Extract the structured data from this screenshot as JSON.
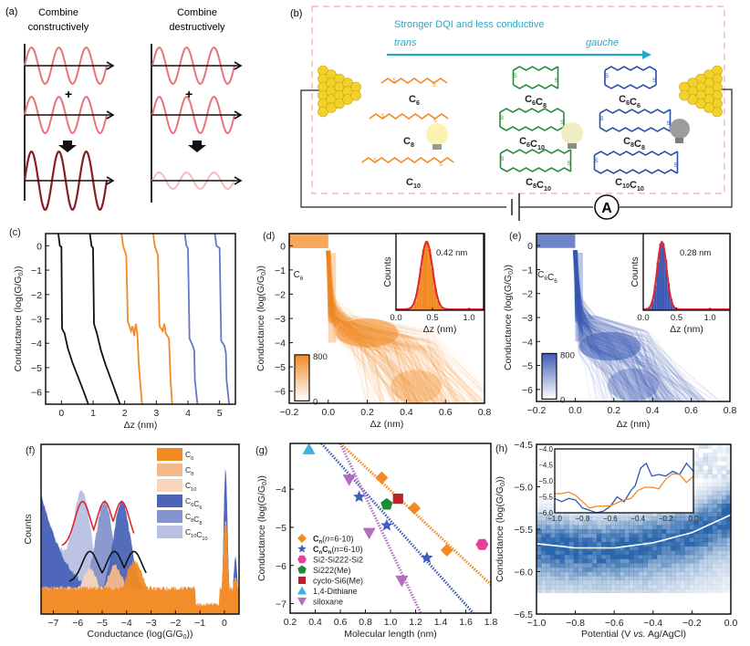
{
  "panels": {
    "a": {
      "label": "(a)",
      "left_title": [
        "Combine",
        "constructively"
      ],
      "right_title": [
        "Combine",
        "destructively"
      ],
      "plus": "+",
      "colors": {
        "wave": "#e8747a",
        "sum_constructive": "#8b1a22",
        "sum_destructive": "#f3bcc0"
      }
    },
    "b": {
      "label": "(b)",
      "arrow_title": "Stronger DQI and less conductive",
      "arrow_left": "trans",
      "arrow_right": "gauche",
      "arrow_color": "#27a9c6",
      "ammeter": "A",
      "molecules": {
        "linear": [
          "C6",
          "C8",
          "C10"
        ],
        "cyclic_mixed": [
          "C6C8",
          "C6C10",
          "C8C10"
        ],
        "cyclic_gauche": [
          "C6C6",
          "C8C8",
          "C10C10"
        ]
      },
      "colors": {
        "linear": "#f28a24",
        "mixed": "#2a8a3c",
        "gauche": "#2b4fad",
        "frame": "#f4b8bd",
        "gold": "#f2d22a"
      }
    }
  },
  "chart_data": [
    {
      "id": "c",
      "type": "line",
      "label": "(c)",
      "xlabel": "Δz (nm)",
      "ylabel": "Conductance (log(G/G0))",
      "xlim": [
        -0.5,
        5.5
      ],
      "ylim": [
        -6.5,
        0.5
      ],
      "xticks": [
        "0",
        "1",
        "2",
        "3",
        "4",
        "5"
      ],
      "yticks": [
        "0",
        "-1",
        "-2",
        "-3",
        "-4",
        "-5",
        "-6"
      ],
      "series": [
        {
          "name": "trace-1",
          "color": "#111111",
          "points": [
            [
              -0.1,
              0.5
            ],
            [
              -0.05,
              0.0
            ],
            [
              0.0,
              -0.05
            ],
            [
              0.02,
              -3.4
            ],
            [
              0.1,
              -3.6
            ],
            [
              0.2,
              -4.2
            ],
            [
              0.35,
              -4.8
            ],
            [
              0.5,
              -5.3
            ],
            [
              0.65,
              -5.8
            ],
            [
              0.85,
              -6.5
            ]
          ]
        },
        {
          "name": "trace-2",
          "color": "#111111",
          "points": [
            [
              0.9,
              0.5
            ],
            [
              0.95,
              0.0
            ],
            [
              1.0,
              -0.1
            ],
            [
              1.03,
              -3.2
            ],
            [
              1.12,
              -3.6
            ],
            [
              1.25,
              -4.3
            ],
            [
              1.4,
              -4.9
            ],
            [
              1.6,
              -5.6
            ],
            [
              1.85,
              -6.5
            ]
          ]
        },
        {
          "name": "trace-3",
          "color": "#f28a24",
          "points": [
            [
              1.9,
              0.5
            ],
            [
              1.95,
              0.0
            ],
            [
              2.05,
              -0.4
            ],
            [
              2.1,
              -3.1
            ],
            [
              2.2,
              -3.5
            ],
            [
              2.25,
              -3.3
            ],
            [
              2.3,
              -3.7
            ],
            [
              2.35,
              -3.2
            ],
            [
              2.4,
              -3.6
            ],
            [
              2.45,
              -5.0
            ],
            [
              2.55,
              -6.5
            ]
          ]
        },
        {
          "name": "trace-4",
          "color": "#f28a24",
          "points": [
            [
              2.9,
              0.5
            ],
            [
              2.95,
              0.0
            ],
            [
              3.05,
              -0.4
            ],
            [
              3.1,
              -3.3
            ],
            [
              3.2,
              -3.5
            ],
            [
              3.25,
              -3.2
            ],
            [
              3.3,
              -3.6
            ],
            [
              3.4,
              -3.8
            ],
            [
              3.45,
              -5.5
            ],
            [
              3.5,
              -6.5
            ]
          ]
        },
        {
          "name": "trace-5",
          "color": "#6678c4",
          "points": [
            [
              3.9,
              0.5
            ],
            [
              3.95,
              0.0
            ],
            [
              4.0,
              -0.1
            ],
            [
              4.05,
              -3.8
            ],
            [
              4.15,
              -4.1
            ],
            [
              4.2,
              -4.3
            ],
            [
              4.22,
              -5.5
            ],
            [
              4.3,
              -6.5
            ]
          ]
        },
        {
          "name": "trace-6",
          "color": "#6678c4",
          "points": [
            [
              4.85,
              0.5
            ],
            [
              4.9,
              0.0
            ],
            [
              5.0,
              -0.1
            ],
            [
              5.05,
              -3.9
            ],
            [
              5.15,
              -4.1
            ],
            [
              5.2,
              -4.4
            ],
            [
              5.22,
              -5.5
            ],
            [
              5.3,
              -6.5
            ]
          ]
        }
      ]
    },
    {
      "id": "d",
      "type": "heatmap",
      "label": "(d)",
      "molecule": "C6",
      "xlabel": "Δz (nm)",
      "ylabel": "Conductance (log(G/G0))",
      "xlim": [
        -0.2,
        0.8
      ],
      "ylim": [
        -6.5,
        0.5
      ],
      "xticks": [
        "-0.2",
        "0.0",
        "0.2",
        "0.4",
        "0.6",
        "0.8"
      ],
      "yticks": [
        "0",
        "-1",
        "-2",
        "-3",
        "-4",
        "-5",
        "-6"
      ],
      "color": "#f28a24",
      "colorbar": {
        "min": "0",
        "max": "800"
      },
      "inset": {
        "type": "bar",
        "xlabel": "Δz (nm)",
        "ylabel": "Counts",
        "xlim": [
          0.0,
          1.2
        ],
        "xticks": [
          "0.0",
          "0.5",
          "1.0"
        ],
        "peak": 0.42,
        "sigma": 0.08,
        "annotation": "0.42 nm",
        "fit_color": "#e0262c"
      }
    },
    {
      "id": "e",
      "type": "heatmap",
      "label": "(e)",
      "molecule": "C6C6",
      "xlabel": "Δz (nm)",
      "ylabel": "Conductance (log(G/G0))",
      "xlim": [
        -0.2,
        0.8
      ],
      "ylim": [
        -6.5,
        0.5
      ],
      "xticks": [
        "-0.2",
        "0.0",
        "0.2",
        "0.4",
        "0.6",
        "0.8"
      ],
      "yticks": [
        "0",
        "-1",
        "-2",
        "-3",
        "-4",
        "-5",
        "-6"
      ],
      "color": "#3d5bb5",
      "colorbar": {
        "min": "0",
        "max": "800"
      },
      "inset": {
        "type": "bar",
        "xlabel": "Δz (nm)",
        "ylabel": "Counts",
        "xlim": [
          0.0,
          1.3
        ],
        "xticks": [
          "0.0",
          "0.5",
          "1.0"
        ],
        "peak": 0.28,
        "sigma": 0.07,
        "annotation": "0.28 nm",
        "fit_color": "#e0262c"
      }
    },
    {
      "id": "f",
      "type": "area",
      "label": "(f)",
      "xlabel": "Conductance (log(G/G0))",
      "ylabel": "Counts",
      "xlim": [
        -7.5,
        0.6
      ],
      "xticks": [
        "-7",
        "-6",
        "-5",
        "-4",
        "-3",
        "-2",
        "-1",
        "0"
      ],
      "legend_position": "top-right",
      "series": [
        {
          "name": "C6",
          "color": "#f28a24",
          "peak": -3.7
        },
        {
          "name": "C8",
          "color": "#f4b98a",
          "peak": -4.5
        },
        {
          "name": "C10",
          "color": "#f8d5bb",
          "peak": -5.5
        },
        {
          "name": "C6C6",
          "color": "#4b64b8",
          "peak": -4.2
        },
        {
          "name": "C8C8",
          "color": "#8593cf",
          "peak": -4.9
        },
        {
          "name": "C10C10",
          "color": "#b8c0e3",
          "peak": -5.8
        }
      ]
    },
    {
      "id": "g",
      "type": "scatter",
      "label": "(g)",
      "xlabel": "Molecular length (nm)",
      "ylabel": "Conductance (log(G/G0))",
      "xlim": [
        0.2,
        1.8
      ],
      "ylim": [
        -7.25,
        -2.8
      ],
      "xticks": [
        "0.2",
        "0.4",
        "0.6",
        "0.8",
        "1.0",
        "1.2",
        "1.4",
        "1.6",
        "1.8"
      ],
      "yticks": [
        "-4",
        "-5",
        "-6",
        "-7"
      ],
      "legend_position": "bottom-left",
      "series": [
        {
          "name": "Cn(n=6-10)",
          "marker": "diamond",
          "color": "#f28a24",
          "points": [
            [
              0.93,
              -3.7
            ],
            [
              1.19,
              -4.5
            ],
            [
              1.45,
              -5.6
            ]
          ],
          "fit": [
            [
              0.6,
              -2.8
            ],
            [
              1.8,
              -6.5
            ]
          ]
        },
        {
          "name": "CnCn(n=6-10)",
          "marker": "star",
          "color": "#3f5fb8",
          "points": [
            [
              0.75,
              -4.2
            ],
            [
              0.97,
              -4.95
            ],
            [
              1.29,
              -5.8
            ]
          ],
          "fit": [
            [
              0.45,
              -2.8
            ],
            [
              1.66,
              -7.25
            ]
          ]
        },
        {
          "name": "Si2-Si222-Si2",
          "marker": "hexagon",
          "color": "#e8409a",
          "points": [
            [
              1.73,
              -5.45
            ]
          ]
        },
        {
          "name": "Si222(Me)",
          "marker": "pentagon",
          "color": "#1e8a3a",
          "points": [
            [
              0.97,
              -4.4
            ]
          ]
        },
        {
          "name": "cyclo-Si6(Me)",
          "marker": "square",
          "color": "#c0202a",
          "points": [
            [
              1.06,
              -4.25
            ]
          ]
        },
        {
          "name": "1,4-Dithiane",
          "marker": "triangle-up",
          "color": "#3fb0e2",
          "points": [
            [
              0.35,
              -2.95
            ]
          ]
        },
        {
          "name": "siloxane",
          "marker": "triangle-down",
          "color": "#b46ec0",
          "points": [
            [
              0.67,
              -3.75
            ],
            [
              0.83,
              -5.15
            ],
            [
              1.09,
              -6.4
            ]
          ],
          "fit": [
            [
              0.6,
              -2.8
            ],
            [
              1.24,
              -7.25
            ]
          ]
        }
      ]
    },
    {
      "id": "h",
      "type": "heatmap",
      "label": "(h)",
      "xlabel": "Potential (V vs. Ag/AgCl)",
      "ylabel": "Conductance (log(G/G0))",
      "xlim": [
        -1.0,
        0.0
      ],
      "ylim": [
        -6.5,
        -4.5
      ],
      "xticks": [
        "-1.0",
        "-0.8",
        "-0.6",
        "-0.4",
        "-0.2",
        "0.0"
      ],
      "yticks": [
        "-4.5",
        "-5.0",
        "-5.5",
        "-6.0",
        "-6.5"
      ],
      "color": "#1f5fa8",
      "fit_curve": [
        [
          -1.0,
          -5.67
        ],
        [
          -0.8,
          -5.72
        ],
        [
          -0.6,
          -5.72
        ],
        [
          -0.4,
          -5.66
        ],
        [
          -0.2,
          -5.54
        ],
        [
          0.0,
          -5.33
        ]
      ],
      "inset": {
        "type": "line",
        "xlim": [
          -1.0,
          0.0
        ],
        "ylim": [
          -6.0,
          -4.0
        ],
        "xticks": [
          "-1.0",
          "-0.8",
          "-0.6",
          "-0.4",
          "-0.2",
          "0.0"
        ],
        "yticks": [
          "-4.0",
          "-4.5",
          "-5.0",
          "-5.5",
          "-6.0"
        ],
        "series": [
          {
            "name": "blue",
            "color": "#2b55b0",
            "points": [
              [
                -1.0,
                -5.55
              ],
              [
                -0.95,
                -5.65
              ],
              [
                -0.9,
                -5.55
              ],
              [
                -0.85,
                -5.6
              ],
              [
                -0.8,
                -5.85
              ],
              [
                -0.75,
                -5.92
              ],
              [
                -0.7,
                -6.0
              ],
              [
                -0.65,
                -5.95
              ],
              [
                -0.6,
                -5.8
              ],
              [
                -0.55,
                -5.5
              ],
              [
                -0.5,
                -5.65
              ],
              [
                -0.45,
                -5.3
              ],
              [
                -0.42,
                -5.15
              ],
              [
                -0.38,
                -4.6
              ],
              [
                -0.34,
                -4.45
              ],
              [
                -0.3,
                -4.85
              ],
              [
                -0.25,
                -4.8
              ],
              [
                -0.2,
                -4.85
              ],
              [
                -0.15,
                -4.7
              ],
              [
                -0.1,
                -4.8
              ],
              [
                -0.05,
                -4.45
              ],
              [
                0.0,
                -4.7
              ]
            ]
          },
          {
            "name": "orange",
            "color": "#f28a24",
            "points": [
              [
                -1.0,
                -5.4
              ],
              [
                -0.95,
                -5.4
              ],
              [
                -0.9,
                -5.35
              ],
              [
                -0.85,
                -5.45
              ],
              [
                -0.8,
                -5.65
              ],
              [
                -0.75,
                -5.85
              ],
              [
                -0.7,
                -5.8
              ],
              [
                -0.6,
                -5.78
              ],
              [
                -0.5,
                -5.6
              ],
              [
                -0.45,
                -5.55
              ],
              [
                -0.4,
                -5.3
              ],
              [
                -0.35,
                -5.2
              ],
              [
                -0.3,
                -5.2
              ],
              [
                -0.25,
                -5.25
              ],
              [
                -0.2,
                -4.95
              ],
              [
                -0.15,
                -4.78
              ],
              [
                -0.1,
                -4.8
              ],
              [
                -0.05,
                -5.05
              ],
              [
                0.0,
                -4.85
              ]
            ]
          }
        ]
      }
    }
  ]
}
